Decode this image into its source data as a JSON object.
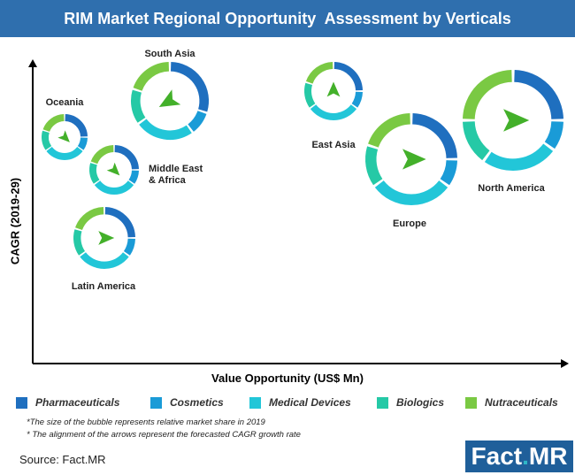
{
  "title": "RIM Market Regional Opportunity  Assessment by Verticals",
  "chart_data": {
    "type": "bubble",
    "title": "RIM Market Regional Opportunity  Assessment by Verticals",
    "xlabel": "Value Opportunity (US$ Mn)",
    "ylabel": "CAGR (2019-29)",
    "grid": false,
    "legend_position": "bottom",
    "series": [
      {
        "name": "Pharmaceuticals",
        "color": "#1f6fbf"
      },
      {
        "name": "Cosmetics",
        "color": "#1a9bd7"
      },
      {
        "name": "Medical Devices",
        "color": "#22c6d8"
      },
      {
        "name": "Biologics",
        "color": "#25c9a6"
      },
      {
        "name": "Nutraceuticals",
        "color": "#7ac943"
      }
    ],
    "bubbles": [
      {
        "label": "South Asia",
        "arrow": "down-left",
        "shares": [
          0.3,
          0.1,
          0.25,
          0.15,
          0.2
        ]
      },
      {
        "label": "Oceania",
        "arrow": "down-right",
        "shares": [
          0.25,
          0.1,
          0.3,
          0.15,
          0.2
        ]
      },
      {
        "label": "Middle East\n& Africa",
        "arrow": "down-right",
        "shares": [
          0.25,
          0.1,
          0.3,
          0.15,
          0.2
        ]
      },
      {
        "label": "Latin America",
        "arrow": "right",
        "shares": [
          0.25,
          0.1,
          0.3,
          0.15,
          0.2
        ]
      },
      {
        "label": "East Asia",
        "arrow": "up",
        "shares": [
          0.25,
          0.1,
          0.3,
          0.15,
          0.2
        ]
      },
      {
        "label": "Europe",
        "arrow": "right",
        "shares": [
          0.25,
          0.1,
          0.3,
          0.15,
          0.2
        ]
      },
      {
        "label": "North America",
        "arrow": "right",
        "shares": [
          0.25,
          0.1,
          0.25,
          0.15,
          0.25
        ]
      }
    ]
  },
  "notes": [
    "*The size of the bubble represents relative market share in 2019",
    "* The alignment of the arrows represent the forecasted CAGR growth rate"
  ],
  "source": "Source: Fact.MR",
  "logo": {
    "part1": "Fact",
    "dot": ".",
    "part2": "MR"
  }
}
